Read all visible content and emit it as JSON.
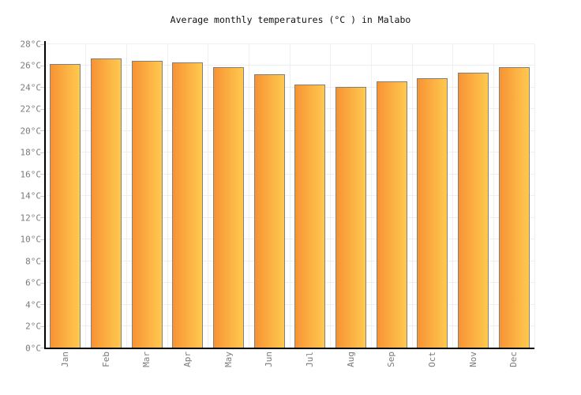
{
  "page": {
    "background": "#ffffff"
  },
  "chart_data": {
    "type": "bar",
    "title": "Average monthly temperatures (°C ) in Malabo",
    "categories": [
      "Jan",
      "Feb",
      "Mar",
      "Apr",
      "May",
      "Jun",
      "Jul",
      "Aug",
      "Sep",
      "Oct",
      "Nov",
      "Dec"
    ],
    "values": [
      26.2,
      26.7,
      26.5,
      26.3,
      25.9,
      25.2,
      24.3,
      24.1,
      24.6,
      24.9,
      25.4,
      25.9
    ],
    "series_name": "Average monthly temperature",
    "unit": "°C",
    "xlabel": "",
    "ylabel": "",
    "ylim": [
      0,
      28
    ],
    "ytick_step": 2,
    "ytick_labels": [
      "0°C",
      "2°C",
      "4°C",
      "6°C",
      "8°C",
      "10°C",
      "12°C",
      "14°C",
      "16°C",
      "18°C",
      "20°C",
      "22°C",
      "24°C",
      "26°C",
      "28°C"
    ],
    "grid": true,
    "legend": false,
    "colors": {
      "bar_gradient_left": "#f79334",
      "bar_gradient_right": "#ffc94f",
      "bar_border": "#808080",
      "gridline": "#efefef",
      "axis": "#000000",
      "tick": "#c8c8c8",
      "label_text": "#7b7b7b",
      "title_text": "#111111",
      "background": "#ffffff"
    }
  }
}
